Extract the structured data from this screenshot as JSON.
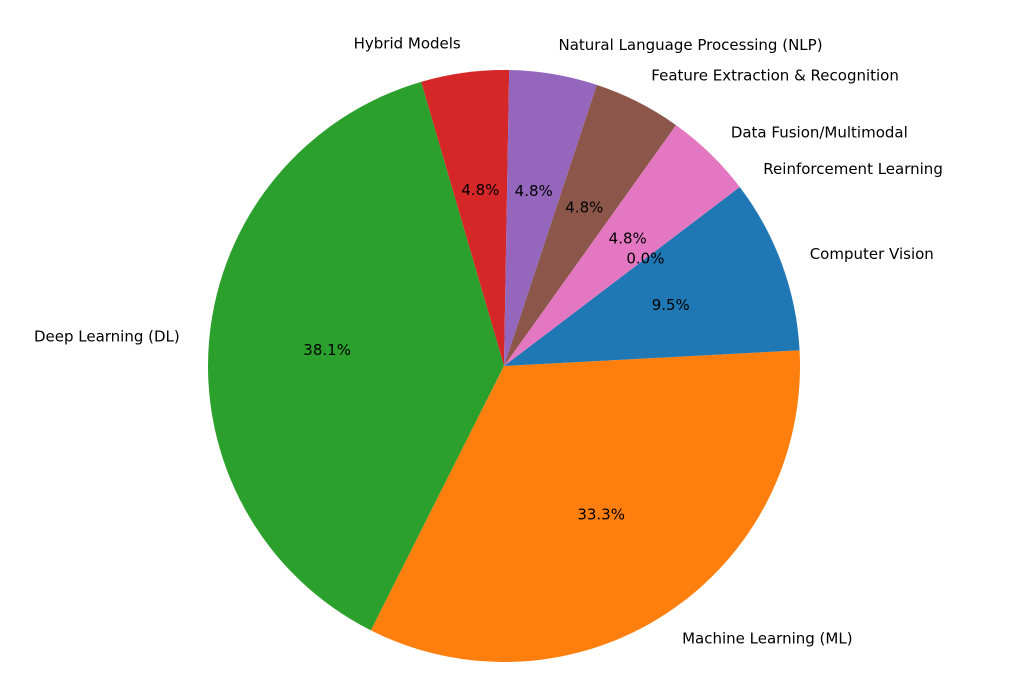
{
  "chart_data": {
    "type": "pie",
    "title": "",
    "slices": [
      {
        "label": "Hybrid Models",
        "value": 4.8,
        "pct_label": "4.8%",
        "color": "#d62728"
      },
      {
        "label": "Deep Learning (DL)",
        "value": 38.1,
        "pct_label": "38.1%",
        "color": "#2ca02c"
      },
      {
        "label": "Machine Learning (ML)",
        "value": 33.3,
        "pct_label": "33.3%",
        "color": "#ff7f0e"
      },
      {
        "label": "Computer Vision",
        "value": 9.5,
        "pct_label": "9.5%",
        "color": "#1f77b4"
      },
      {
        "label": "Reinforcement Learning",
        "value": 0.0,
        "pct_label": "0.0%",
        "color": "#17becf"
      },
      {
        "label": "Data Fusion/Multimodal",
        "value": 4.8,
        "pct_label": "4.8%",
        "color": "#e377c2"
      },
      {
        "label": "Feature Extraction & Recognition",
        "value": 4.8,
        "pct_label": "4.8%",
        "color": "#8c564b"
      },
      {
        "label": "Natural Language Processing (NLP)",
        "value": 4.8,
        "pct_label": "4.8%",
        "color": "#9467bd"
      }
    ]
  }
}
